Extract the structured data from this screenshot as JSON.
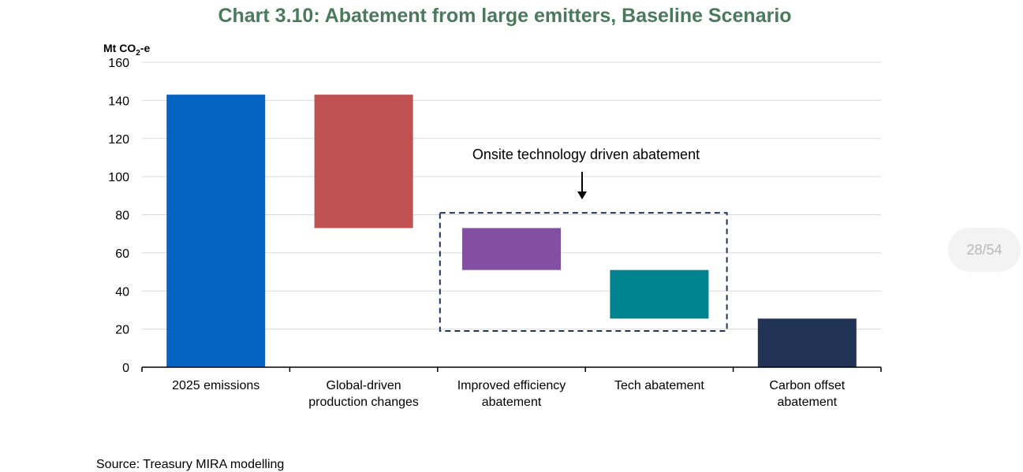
{
  "chart_data": {
    "type": "waterfall",
    "title": "Chart 3.10: Abatement from large emitters, Baseline Scenario",
    "ylabel_main": "Mt CO",
    "ylabel_sub": "2",
    "ylabel_tail": "-e",
    "ylim": [
      0,
      160
    ],
    "yticks": [
      "0",
      "20",
      "40",
      "60",
      "80",
      "100",
      "120",
      "140",
      "160"
    ],
    "grid": true,
    "categories": [
      {
        "lines": [
          "2025 emissions"
        ],
        "bottom": 0,
        "top": 143,
        "color": "#0563c1"
      },
      {
        "lines": [
          "Global-driven",
          "production changes"
        ],
        "bottom": 73,
        "top": 143,
        "color": "#bf5152"
      },
      {
        "lines": [
          "Improved efficiency",
          "abatement"
        ],
        "bottom": 51,
        "top": 73,
        "color": "#834fa2"
      },
      {
        "lines": [
          "Tech abatement"
        ],
        "bottom": 25.5,
        "top": 51,
        "color": "#00838f"
      },
      {
        "lines": [
          "Carbon offset",
          "abatement"
        ],
        "bottom": 0,
        "top": 25.5,
        "color": "#213456"
      }
    ],
    "annotation": "Onsite technology driven abatement",
    "annotation_box_range": [
      19,
      81
    ]
  },
  "page_indicator": "28/54",
  "source_note": "Source: Treasury MIRA modelling"
}
